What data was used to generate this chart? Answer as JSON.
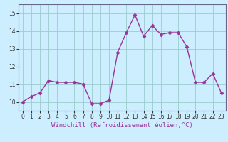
{
  "x": [
    0,
    1,
    2,
    3,
    4,
    5,
    6,
    7,
    8,
    9,
    10,
    11,
    12,
    13,
    14,
    15,
    16,
    17,
    18,
    19,
    20,
    21,
    22,
    23
  ],
  "y": [
    10.0,
    10.3,
    10.5,
    11.2,
    11.1,
    11.1,
    11.1,
    11.0,
    9.9,
    9.9,
    10.1,
    12.8,
    13.9,
    14.9,
    13.7,
    14.3,
    13.8,
    13.9,
    13.9,
    13.1,
    11.1,
    11.1,
    11.6,
    10.5
  ],
  "line_color": "#993399",
  "marker": "D",
  "marker_size": 2.5,
  "xlabel": "Windchill (Refroidissement éolien,°C)",
  "xlim": [
    -0.5,
    23.5
  ],
  "ylim": [
    9.5,
    15.5
  ],
  "yticks": [
    10,
    11,
    12,
    13,
    14,
    15
  ],
  "xticks": [
    0,
    1,
    2,
    3,
    4,
    5,
    6,
    7,
    8,
    9,
    10,
    11,
    12,
    13,
    14,
    15,
    16,
    17,
    18,
    19,
    20,
    21,
    22,
    23
  ],
  "bg_color": "#cceeff",
  "grid_color": "#99cccc",
  "label_fontsize": 6.5,
  "tick_fontsize": 5.5,
  "spine_color": "#666688",
  "linewidth": 1.0
}
